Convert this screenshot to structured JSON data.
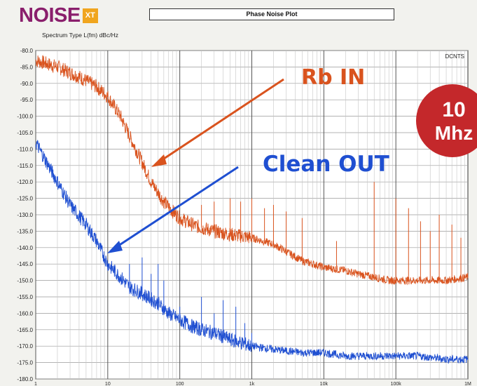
{
  "header": {
    "logo_text": "NOISE",
    "logo_badge": "XT",
    "plot_title": "Phase Noise Plot",
    "spectrum_label": "Spectrum Type  L(fm) dBc/Hz",
    "corner_label": "DCNTS"
  },
  "badge": {
    "line1": "10",
    "line2": "Mhz"
  },
  "annotations": {
    "rb_in": "Rb IN",
    "clean_out": "Clean OUT"
  },
  "colors": {
    "rb_in": "#d9531e",
    "clean_out": "#1f4fd1",
    "badge": "#c4282b",
    "logo": "#8a1f6c",
    "logo_badge": "#f0a51e"
  },
  "chart_data": {
    "type": "line",
    "x_scale": "log",
    "xlim": [
      1,
      1000000
    ],
    "ylim": [
      -180,
      -80
    ],
    "grid": true,
    "y_ticks": [
      "-80.0",
      "-85.0",
      "-90.0",
      "-95.0",
      "-100.0",
      "-105.0",
      "-110.0",
      "-115.0",
      "-120.0",
      "-125.0",
      "-130.0",
      "-135.0",
      "-140.0",
      "-145.0",
      "-150.0",
      "-155.0",
      "-160.0",
      "-165.0",
      "-170.0",
      "-175.0",
      "-180.0"
    ],
    "x_ticks": [
      "1",
      "10",
      "100",
      "1k",
      "10k",
      "100k",
      "1M"
    ],
    "series": [
      {
        "name": "Rb IN",
        "color": "#d9531e",
        "x": [
          1,
          2,
          4,
          7,
          10,
          15,
          20,
          30,
          40,
          60,
          80,
          100,
          150,
          200,
          300,
          500,
          1000,
          2000,
          5000,
          10000,
          20000,
          30000,
          50000,
          80000,
          100000,
          200000,
          500000,
          1000000
        ],
        "y": [
          -83,
          -85,
          -88,
          -91,
          -94,
          -100,
          -106,
          -114,
          -120,
          -126,
          -129,
          -131,
          -133,
          -134,
          -135,
          -136,
          -137,
          -139,
          -144,
          -146,
          -147,
          -148,
          -149,
          -150,
          -150,
          -150,
          -150,
          -149
        ],
        "spurs": [
          {
            "x": 200,
            "y": -127
          },
          {
            "x": 300,
            "y": -126
          },
          {
            "x": 500,
            "y": -125
          },
          {
            "x": 700,
            "y": -126
          },
          {
            "x": 1000,
            "y": -125
          },
          {
            "x": 1500,
            "y": -128
          },
          {
            "x": 2000,
            "y": -127
          },
          {
            "x": 3000,
            "y": -129
          },
          {
            "x": 5000,
            "y": -131
          },
          {
            "x": 15000,
            "y": -138
          },
          {
            "x": 50000,
            "y": -120
          },
          {
            "x": 100000,
            "y": -125
          },
          {
            "x": 150000,
            "y": -128
          },
          {
            "x": 220000,
            "y": -132
          },
          {
            "x": 300000,
            "y": -135
          },
          {
            "x": 400000,
            "y": -130
          },
          {
            "x": 600000,
            "y": -133
          },
          {
            "x": 800000,
            "y": -137
          }
        ]
      },
      {
        "name": "Clean OUT",
        "color": "#1f4fd1",
        "x": [
          1,
          1.5,
          2,
          3,
          5,
          7,
          10,
          15,
          20,
          30,
          50,
          70,
          100,
          150,
          200,
          300,
          500,
          1000,
          2000,
          5000,
          10000,
          20000,
          50000,
          100000,
          200000,
          500000,
          1000000
        ],
        "y": [
          -108,
          -115,
          -120,
          -127,
          -133,
          -138,
          -145,
          -149,
          -152,
          -154,
          -157,
          -160,
          -162,
          -164,
          -165,
          -166,
          -168,
          -170,
          -171,
          -172,
          -172,
          -173,
          -173,
          -173,
          -173,
          -174,
          -174
        ],
        "spurs": [
          {
            "x": 20,
            "y": -145
          },
          {
            "x": 30,
            "y": -143
          },
          {
            "x": 40,
            "y": -148
          },
          {
            "x": 50,
            "y": -145
          },
          {
            "x": 60,
            "y": -150
          },
          {
            "x": 100,
            "y": -158
          },
          {
            "x": 200,
            "y": -155
          },
          {
            "x": 300,
            "y": -160
          },
          {
            "x": 400,
            "y": -156
          },
          {
            "x": 600,
            "y": -158
          },
          {
            "x": 800,
            "y": -163
          },
          {
            "x": 1000,
            "y": -166
          }
        ]
      }
    ]
  }
}
